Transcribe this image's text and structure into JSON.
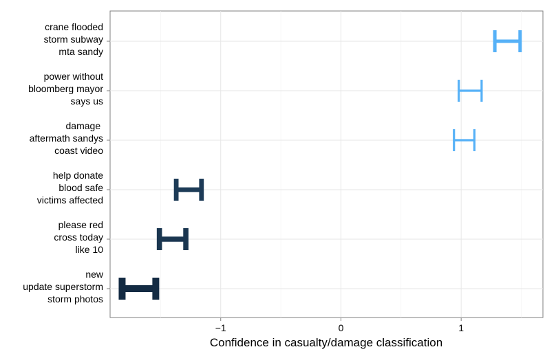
{
  "chart_data": {
    "type": "errorbar",
    "xlabel": "Confidence in casualty/damage classification",
    "ylabel": "",
    "xlim": [
      -1.92,
      1.68
    ],
    "xticks": [
      -1,
      0,
      1
    ],
    "xtick_labels": [
      "−1",
      "0",
      "1"
    ],
    "grid": true,
    "legend": "none",
    "categories": [
      [
        "crane flooded",
        "storm subway",
        "mta sandy"
      ],
      [
        "power without",
        "bloomberg mayor",
        "says us"
      ],
      [
        "damage ",
        "aftermath sandys",
        "coast video"
      ],
      [
        "help donate",
        "blood safe",
        "victims affected"
      ],
      [
        "please red",
        "cross today",
        "like 10"
      ],
      [
        "new",
        "update superstorm",
        "storm photos"
      ]
    ],
    "intervals": [
      {
        "low": 1.28,
        "high": 1.49,
        "center": 1.385,
        "color": "#56b1f7",
        "thickness": 2.5
      },
      {
        "low": 0.98,
        "high": 1.17,
        "center": 1.075,
        "color": "#56b1f7",
        "thickness": 1.6
      },
      {
        "low": 0.94,
        "high": 1.11,
        "center": 1.02,
        "color": "#56b1f7",
        "thickness": 1.6
      },
      {
        "low": -1.37,
        "high": -1.16,
        "center": -1.265,
        "color": "#1d3b57",
        "thickness": 3.4
      },
      {
        "low": -1.51,
        "high": -1.29,
        "center": -1.4,
        "color": "#1a3650",
        "thickness": 3.8
      },
      {
        "low": -1.82,
        "high": -1.54,
        "center": -1.68,
        "color": "#132b43",
        "thickness": 5.0
      }
    ]
  }
}
